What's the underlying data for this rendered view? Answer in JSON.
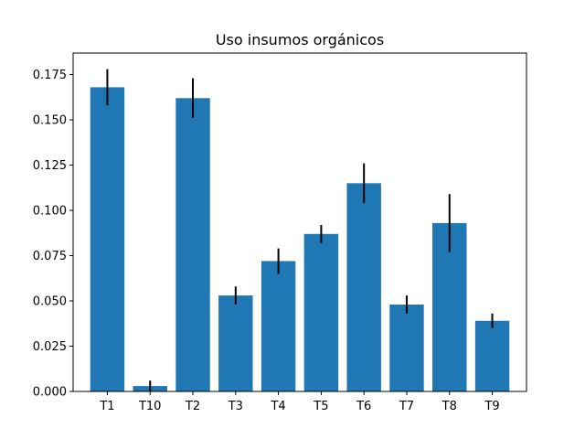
{
  "chart_data": {
    "type": "bar",
    "title": "Uso insumos orgánicos",
    "xlabel": "",
    "ylabel": "",
    "categories": [
      "T1",
      "T10",
      "T2",
      "T3",
      "T4",
      "T5",
      "T6",
      "T7",
      "T8",
      "T9"
    ],
    "values": [
      0.168,
      0.003,
      0.162,
      0.053,
      0.072,
      0.087,
      0.115,
      0.048,
      0.093,
      0.039
    ],
    "errors": [
      0.01,
      0.003,
      0.011,
      0.005,
      0.007,
      0.005,
      0.011,
      0.005,
      0.016,
      0.004
    ],
    "ylim": [
      0,
      0.1869
    ],
    "yticks": [
      0.0,
      0.025,
      0.05,
      0.075,
      0.1,
      0.125,
      0.15,
      0.175
    ],
    "ytick_labels": [
      "0.000",
      "0.025",
      "0.050",
      "0.075",
      "0.100",
      "0.125",
      "0.150",
      "0.175"
    ],
    "grid": false,
    "colors": {
      "bar": "#1f77b4",
      "error": "#000000",
      "axis": "#000000"
    }
  }
}
